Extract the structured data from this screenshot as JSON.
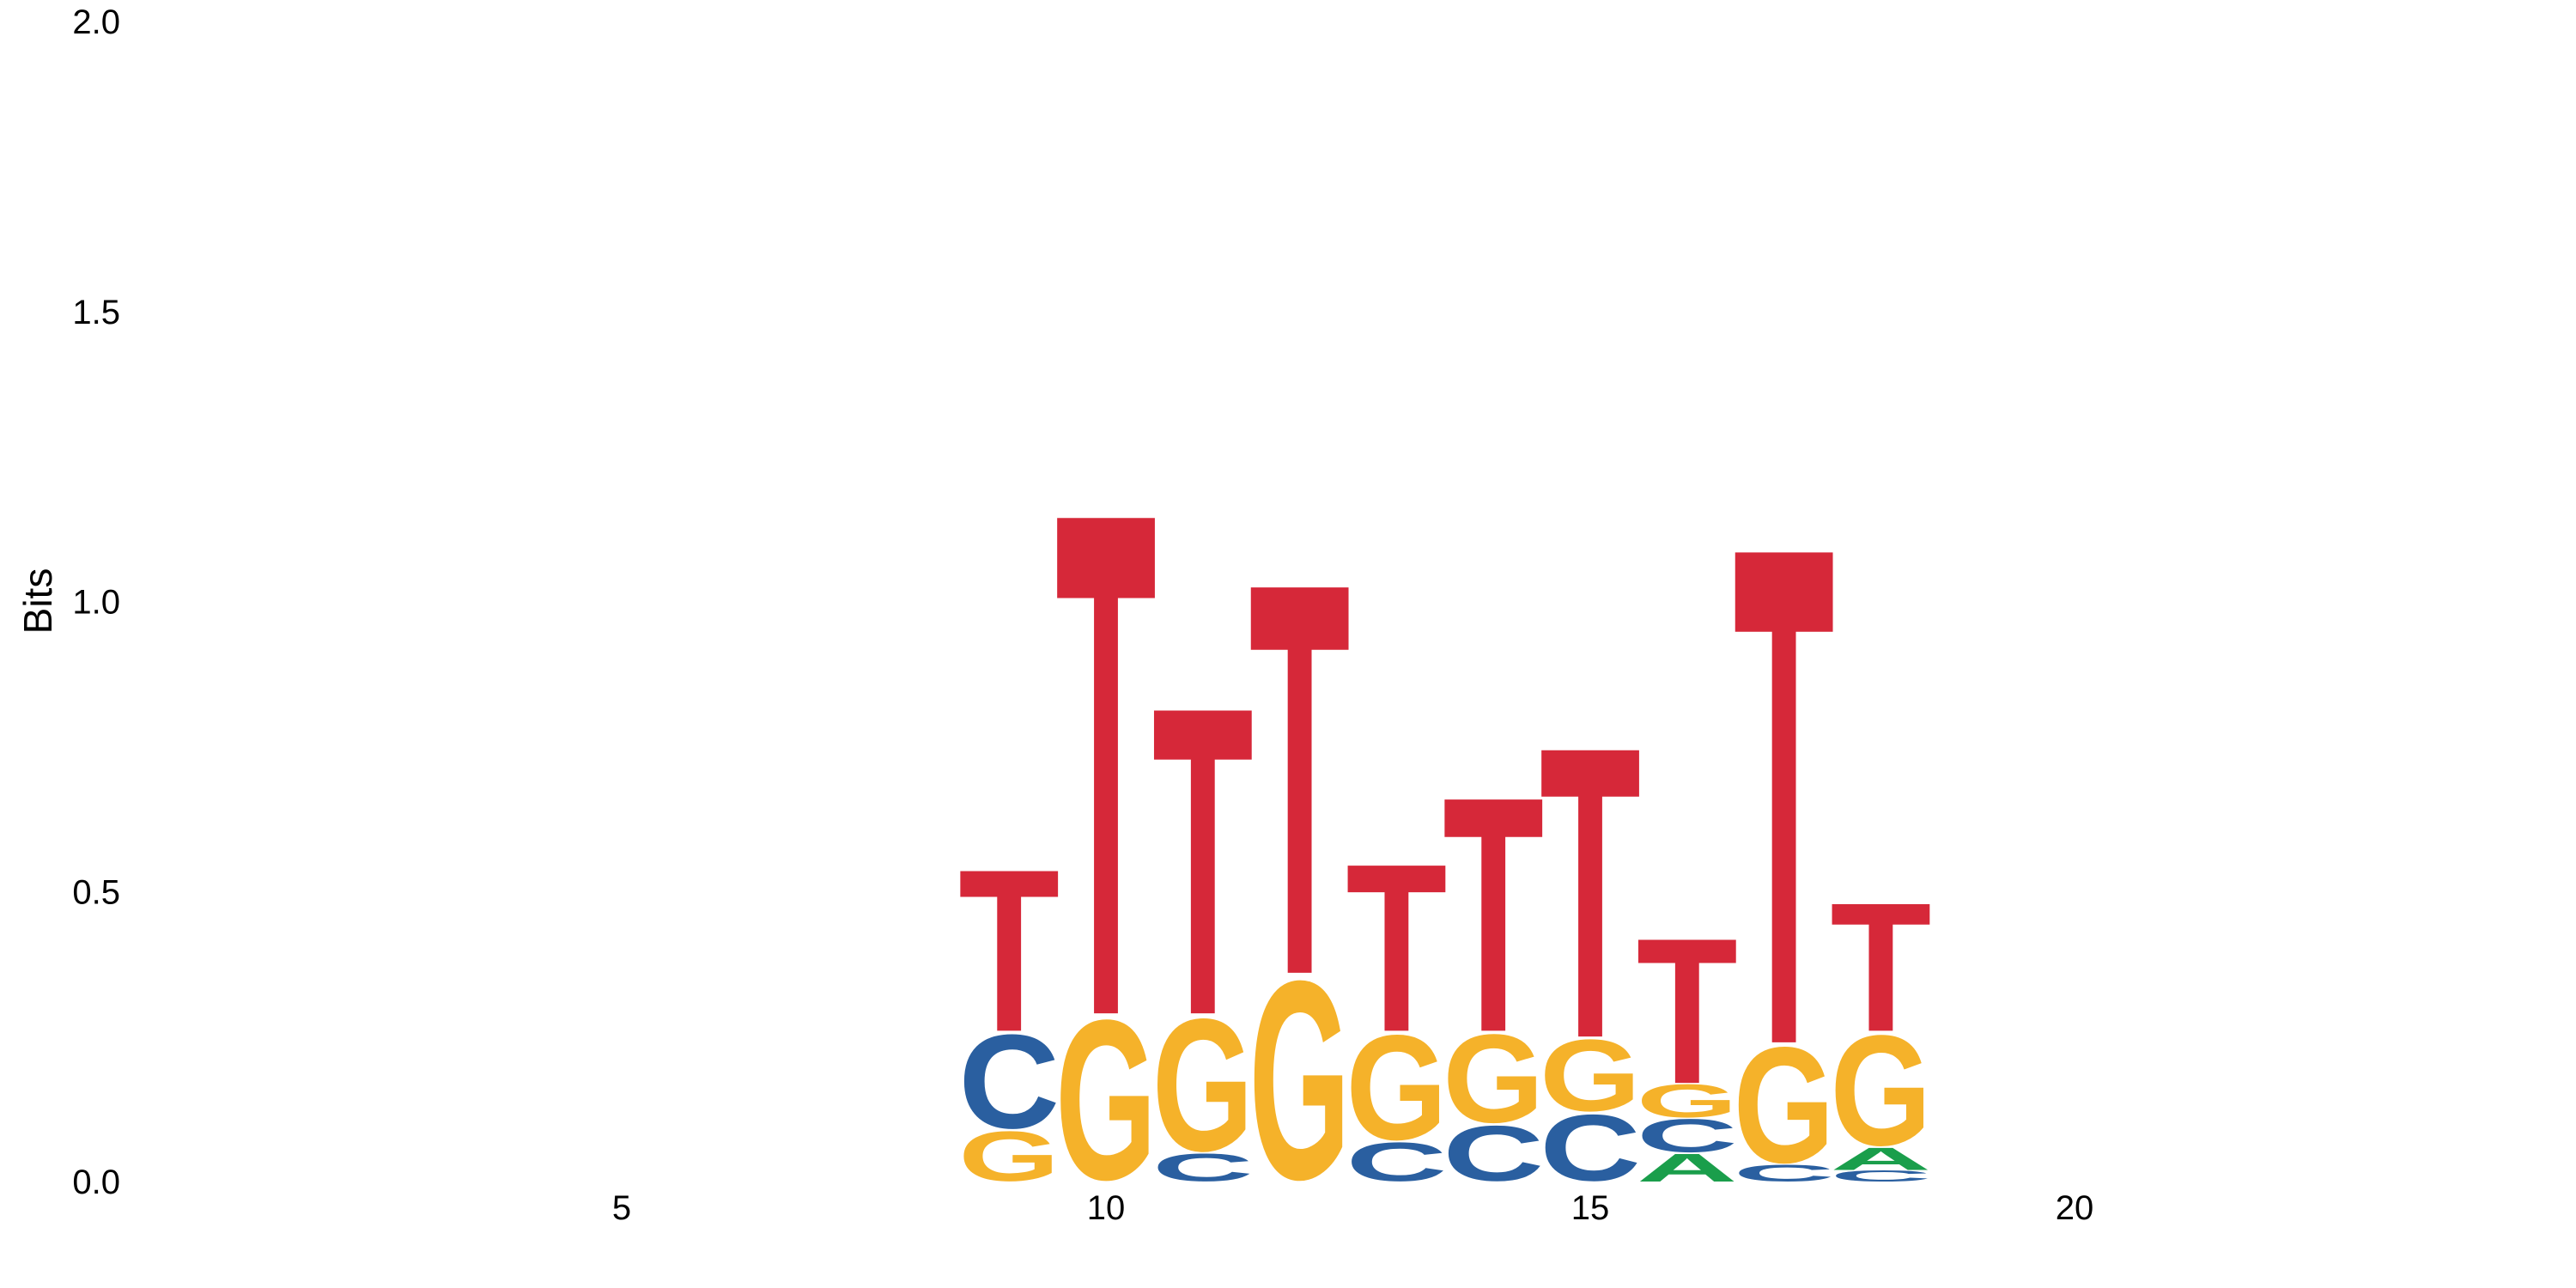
{
  "chart_data": {
    "type": "sequence_logo",
    "title": "",
    "xlabel": "",
    "ylabel": "Bits",
    "xlim": [
      0,
      25
    ],
    "ylim": [
      0,
      2.0
    ],
    "y_ticks": [
      "0.0",
      "0.5",
      "1.0",
      "1.5",
      "2.0"
    ],
    "x_ticks": [
      "5",
      "10",
      "15",
      "20"
    ],
    "colors": {
      "A": "#1a9e4b",
      "C": "#2a5fa0",
      "G": "#f5b22a",
      "T": "#d62839"
    },
    "positions": [
      {
        "x": 9,
        "letters": [
          {
            "l": "G",
            "h": 0.09
          },
          {
            "l": "C",
            "h": 0.17
          },
          {
            "l": "T",
            "h": 0.29
          }
        ]
      },
      {
        "x": 10,
        "letters": [
          {
            "l": "G",
            "h": 0.29
          },
          {
            "l": "T",
            "h": 0.9
          }
        ]
      },
      {
        "x": 11,
        "letters": [
          {
            "l": "C",
            "h": 0.05
          },
          {
            "l": "G",
            "h": 0.24
          },
          {
            "l": "T",
            "h": 0.55
          }
        ]
      },
      {
        "x": 12,
        "letters": [
          {
            "l": "G",
            "h": 0.36
          },
          {
            "l": "T",
            "h": 0.7
          }
        ]
      },
      {
        "x": 13,
        "letters": [
          {
            "l": "C",
            "h": 0.07
          },
          {
            "l": "G",
            "h": 0.19
          },
          {
            "l": "T",
            "h": 0.3
          }
        ]
      },
      {
        "x": 14,
        "letters": [
          {
            "l": "C",
            "h": 0.1
          },
          {
            "l": "G",
            "h": 0.16
          },
          {
            "l": "T",
            "h": 0.42
          }
        ]
      },
      {
        "x": 15,
        "letters": [
          {
            "l": "C",
            "h": 0.12
          },
          {
            "l": "G",
            "h": 0.13
          },
          {
            "l": "T",
            "h": 0.52
          }
        ]
      },
      {
        "x": 16,
        "letters": [
          {
            "l": "A",
            "h": 0.05
          },
          {
            "l": "C",
            "h": 0.06
          },
          {
            "l": "G",
            "h": 0.06
          },
          {
            "l": "T",
            "h": 0.26
          }
        ]
      },
      {
        "x": 17,
        "letters": [
          {
            "l": "C",
            "h": 0.03
          },
          {
            "l": "G",
            "h": 0.21
          },
          {
            "l": "T",
            "h": 0.89
          }
        ]
      },
      {
        "x": 18,
        "letters": [
          {
            "l": "C",
            "h": 0.02
          },
          {
            "l": "A",
            "h": 0.04
          },
          {
            "l": "G",
            "h": 0.2
          },
          {
            "l": "T",
            "h": 0.23
          }
        ]
      }
    ]
  }
}
